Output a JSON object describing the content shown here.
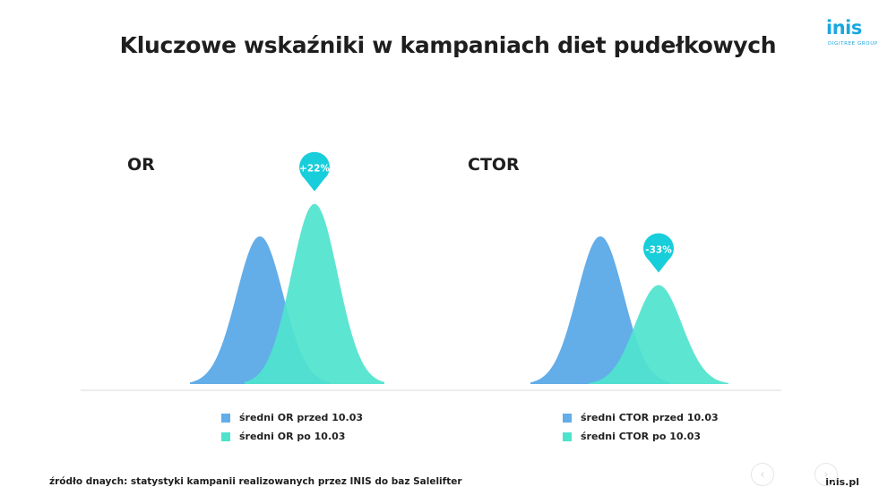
{
  "title": "Kluczowe wskaźniki w kampaniach diet pudełkowych",
  "logo": {
    "text": "inis",
    "subtext": "DIGITREE GROUP"
  },
  "colors": {
    "before": "#63ade8",
    "after": "#4ee3cd",
    "badge": "#18ceda",
    "baseline": "#ececec"
  },
  "chart_data": [
    {
      "type": "area",
      "title": "OR",
      "series": [
        {
          "name": "średni OR przed 10.03",
          "peak": 1.0
        },
        {
          "name": "średni OR po 10.03",
          "peak": 1.22
        }
      ],
      "annotation": "+22%"
    },
    {
      "type": "area",
      "title": "CTOR",
      "series": [
        {
          "name": "średni CTOR przed 10.03",
          "peak": 1.0
        },
        {
          "name": "średni CTOR po 10.03",
          "peak": 0.67
        }
      ],
      "annotation": "-33%"
    }
  ],
  "footer": {
    "source": "źródło dnaych: statystyki kampanii realizowanych przez INIS do baz Salelifter",
    "site": "inis.pl"
  },
  "nav": {
    "prev_icon": "chevron-left-icon",
    "next_icon": "chevron-right-icon"
  }
}
